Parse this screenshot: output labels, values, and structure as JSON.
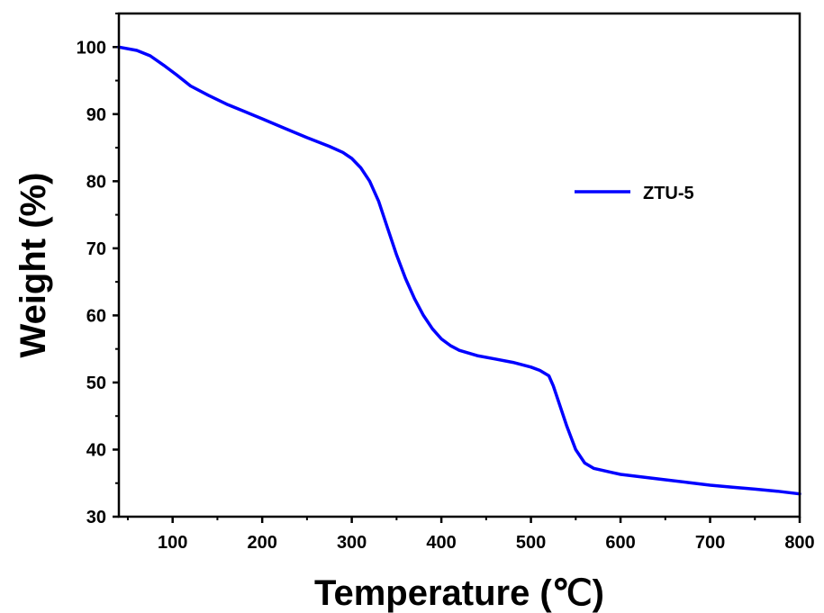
{
  "chart_data": {
    "type": "line",
    "xlabel": "Temperature (℃)",
    "ylabel": "Weight (%)",
    "xlim": [
      40,
      800
    ],
    "ylim": [
      30,
      105
    ],
    "x_ticks": [
      100,
      200,
      300,
      400,
      500,
      600,
      700,
      800
    ],
    "y_ticks": [
      30,
      40,
      50,
      60,
      70,
      80,
      90,
      100
    ],
    "x_minor_step": 50,
    "y_minor_step": 5,
    "grid": false,
    "legend_position": "upper-right",
    "series": [
      {
        "name": "ZTU-5",
        "color": "#0000FF",
        "x": [
          40,
          60,
          75,
          90,
          105,
          120,
          140,
          160,
          180,
          200,
          225,
          250,
          275,
          290,
          300,
          310,
          320,
          330,
          340,
          350,
          360,
          370,
          380,
          390,
          400,
          410,
          420,
          440,
          460,
          480,
          500,
          510,
          520,
          525,
          530,
          540,
          550,
          560,
          570,
          580,
          590,
          600,
          625,
          650,
          675,
          700,
          725,
          750,
          775,
          800
        ],
        "y": [
          100.0,
          99.5,
          98.7,
          97.3,
          95.8,
          94.2,
          92.8,
          91.5,
          90.4,
          89.3,
          87.9,
          86.5,
          85.2,
          84.3,
          83.4,
          82.0,
          80.0,
          77.0,
          73.0,
          69.0,
          65.5,
          62.5,
          60.0,
          58.0,
          56.5,
          55.5,
          54.8,
          54.0,
          53.5,
          53.0,
          52.3,
          51.8,
          51.0,
          49.5,
          47.5,
          43.5,
          40.0,
          38.0,
          37.2,
          36.9,
          36.6,
          36.3,
          35.9,
          35.5,
          35.1,
          34.7,
          34.4,
          34.1,
          33.8,
          33.4
        ]
      }
    ]
  }
}
